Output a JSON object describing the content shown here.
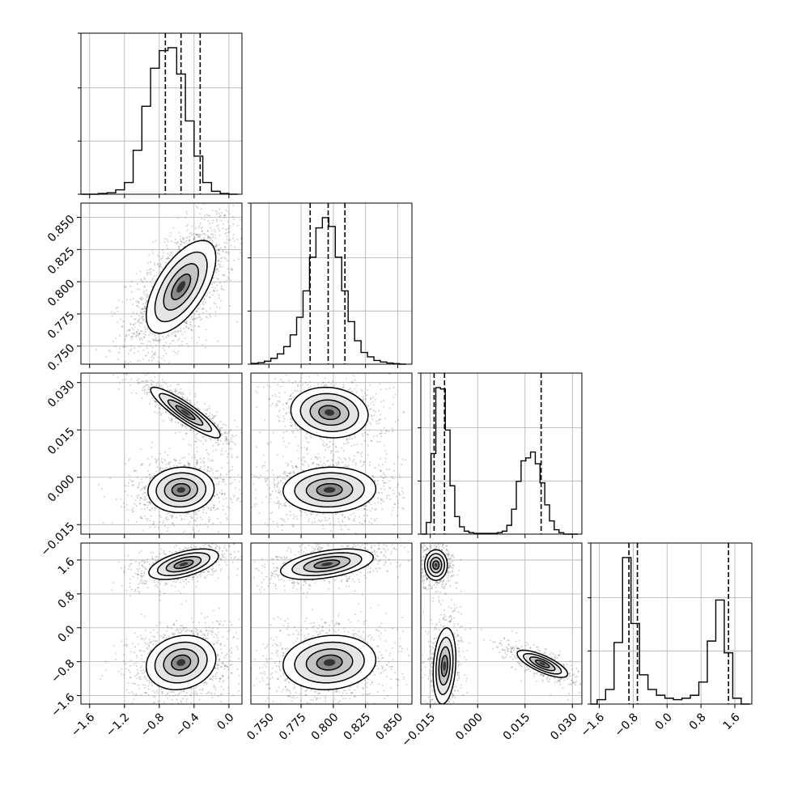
{
  "chart_data": {
    "type": "corner",
    "parameters": 4,
    "grid": true,
    "panel_axes": [
      {
        "range": [
          -1.7,
          0.15
        ],
        "ticks": [
          -1.6,
          -1.2,
          -0.8,
          -0.4,
          0.0
        ],
        "tick_labels": [
          "−1.6",
          "−1.2",
          "−0.8",
          "−0.4",
          "0.0"
        ]
      },
      {
        "range": [
          0.736,
          0.861
        ],
        "ticks": [
          0.75,
          0.775,
          0.8,
          0.825,
          0.85
        ],
        "tick_labels": [
          "0.750",
          "0.775",
          "0.800",
          "0.825",
          "0.850"
        ]
      },
      {
        "range": [
          -0.018,
          0.033
        ],
        "ticks": [
          -0.015,
          0.0,
          0.015,
          0.03
        ],
        "tick_labels": [
          "−0.015",
          "0.000",
          "0.015",
          "0.030"
        ]
      },
      {
        "range": [
          -1.8,
          2.0
        ],
        "ticks": [
          -1.6,
          -0.8,
          0.0,
          0.8,
          1.6
        ],
        "tick_labels": [
          "−1.6",
          "−0.8",
          "0.0",
          "0.8",
          "1.6"
        ]
      }
    ],
    "histograms": [
      {
        "param": 0,
        "bins": [
          -1.65,
          -1.55,
          -1.45,
          -1.35,
          -1.25,
          -1.15,
          -1.05,
          -0.95,
          -0.85,
          -0.75,
          -0.65,
          -0.55,
          -0.45,
          -0.35,
          -0.25,
          -0.15,
          -0.05,
          0.05
        ],
        "counts": [
          0.0,
          0.0,
          0.005,
          0.01,
          0.03,
          0.08,
          0.3,
          0.6,
          0.86,
          0.98,
          1.0,
          0.82,
          0.5,
          0.26,
          0.08,
          0.02,
          0.005,
          0.0
        ],
        "quantiles": [
          -0.73,
          -0.55,
          -0.33
        ]
      },
      {
        "param": 1,
        "bins": [
          0.739,
          0.744,
          0.749,
          0.754,
          0.759,
          0.764,
          0.769,
          0.774,
          0.779,
          0.784,
          0.789,
          0.794,
          0.799,
          0.804,
          0.809,
          0.814,
          0.819,
          0.824,
          0.829,
          0.834,
          0.839,
          0.844,
          0.849,
          0.854
        ],
        "counts": [
          0.005,
          0.01,
          0.02,
          0.04,
          0.07,
          0.12,
          0.2,
          0.32,
          0.5,
          0.73,
          0.93,
          1.0,
          0.94,
          0.73,
          0.5,
          0.29,
          0.16,
          0.08,
          0.05,
          0.025,
          0.015,
          0.008,
          0.004,
          0.0
        ],
        "quantiles": [
          0.782,
          0.796,
          0.809
        ]
      },
      {
        "param": 2,
        "bins": [
          -0.017,
          -0.0155,
          -0.014,
          -0.0125,
          -0.011,
          -0.0095,
          -0.008,
          -0.0065,
          -0.005,
          -0.0035,
          -0.002,
          -0.0005,
          0.001,
          0.0025,
          0.004,
          0.0055,
          0.007,
          0.0085,
          0.01,
          0.0115,
          0.013,
          0.0145,
          0.016,
          0.0175,
          0.019,
          0.0205,
          0.022,
          0.0235,
          0.025,
          0.0265,
          0.028,
          0.0295,
          0.031
        ],
        "counts": [
          0.0,
          0.08,
          0.55,
          1.0,
          0.99,
          0.71,
          0.33,
          0.12,
          0.05,
          0.02,
          0.01,
          0.005,
          0.005,
          0.005,
          0.005,
          0.005,
          0.01,
          0.02,
          0.06,
          0.17,
          0.36,
          0.5,
          0.52,
          0.56,
          0.48,
          0.35,
          0.2,
          0.09,
          0.03,
          0.01,
          0.0,
          0.0,
          0.0
        ],
        "quantiles": [
          -0.0138,
          -0.0105,
          0.0201
        ]
      },
      {
        "param": 3,
        "bins": [
          -1.75,
          -1.55,
          -1.35,
          -1.15,
          -0.95,
          -0.75,
          -0.55,
          -0.35,
          -0.15,
          0.05,
          0.25,
          0.45,
          0.65,
          0.85,
          1.05,
          1.25,
          1.45,
          1.65,
          1.85
        ],
        "counts": [
          0.0,
          0.03,
          0.1,
          0.42,
          1.0,
          0.55,
          0.2,
          0.1,
          0.06,
          0.04,
          0.03,
          0.04,
          0.06,
          0.15,
          0.43,
          0.71,
          0.35,
          0.04,
          0.0
        ],
        "quantiles": [
          -0.9,
          -0.7,
          1.45
        ]
      }
    ],
    "joint_panels": [
      {
        "x": 0,
        "y": 1,
        "modes": [
          {
            "center": [
              -0.55,
              0.796
            ],
            "sigma": [
              0.2,
              0.018
            ],
            "rho": 0.62,
            "weight": 1.0
          }
        ]
      },
      {
        "x": 0,
        "y": 2,
        "modes": [
          {
            "center": [
              -0.55,
              -0.004
            ],
            "sigma": [
              0.19,
              0.0036
            ],
            "rho": 0.05,
            "weight": 0.58
          },
          {
            "center": [
              -0.5,
              0.0205
            ],
            "sigma": [
              0.2,
              0.004
            ],
            "rho": -0.9,
            "weight": 0.42
          }
        ]
      },
      {
        "x": 1,
        "y": 2,
        "modes": [
          {
            "center": [
              0.797,
              -0.004
            ],
            "sigma": [
              0.018,
              0.0036
            ],
            "rho": 0.05,
            "weight": 0.58
          },
          {
            "center": [
              0.797,
              0.0205
            ],
            "sigma": [
              0.015,
              0.004
            ],
            "rho": -0.1,
            "weight": 0.42
          }
        ]
      },
      {
        "x": 0,
        "y": 3,
        "modes": [
          {
            "center": [
              -0.55,
              -0.82
            ],
            "sigma": [
              0.2,
              0.32
            ],
            "rho": 0.15,
            "weight": 0.6
          },
          {
            "center": [
              -0.52,
              1.5
            ],
            "sigma": [
              0.2,
              0.18
            ],
            "rho": 0.55,
            "weight": 0.4
          }
        ]
      },
      {
        "x": 1,
        "y": 3,
        "modes": [
          {
            "center": [
              0.797,
              -0.82
            ],
            "sigma": [
              0.018,
              0.32
            ],
            "rho": 0.1,
            "weight": 0.6
          },
          {
            "center": [
              0.795,
              1.5
            ],
            "sigma": [
              0.018,
              0.18
            ],
            "rho": 0.45,
            "weight": 0.4
          }
        ]
      },
      {
        "x": 2,
        "y": 3,
        "modes": [
          {
            "center": [
              -0.0132,
              1.48
            ],
            "sigma": [
              0.0018,
              0.18
            ],
            "rho": 0.0,
            "weight": 0.32
          },
          {
            "center": [
              -0.0105,
              -0.9
            ],
            "sigma": [
              0.0018,
              0.45
            ],
            "rho": 0.2,
            "weight": 0.35
          },
          {
            "center": [
              0.0205,
              -0.85
            ],
            "sigma": [
              0.004,
              0.16
            ],
            "rho": -0.75,
            "weight": 0.33
          }
        ]
      }
    ]
  }
}
